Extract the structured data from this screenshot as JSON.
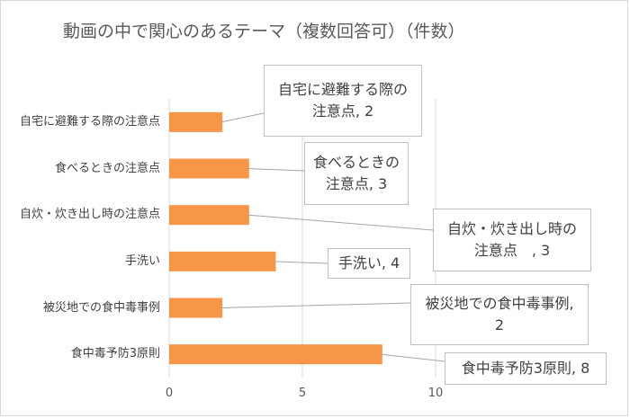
{
  "chart_data": {
    "type": "bar",
    "orientation": "horizontal",
    "title": "動画の中で関心のあるテーマ（複数回答可）（件数）",
    "categories": [
      "自宅に避難する際の注意点",
      "食べるときの注意点",
      "自炊・炊き出し時の注意点",
      "手洗い",
      "被災地での食中毒事例",
      "食中毒予防3原則"
    ],
    "values": [
      2,
      3,
      3,
      4,
      2,
      8
    ],
    "data_labels": [
      "自宅に避難する際の注意点, 2",
      "食べるときの注意点, 3",
      "自炊・炊き出し時の注意点　, 3",
      "手洗い, 4",
      "被災地での食中毒事例, 2",
      "食中毒予防3原則, 8"
    ],
    "xlim": [
      0,
      10
    ],
    "xticks": [
      "0",
      "5",
      "10"
    ],
    "grid": true,
    "legend": "none",
    "bar_color": "#f79646"
  }
}
